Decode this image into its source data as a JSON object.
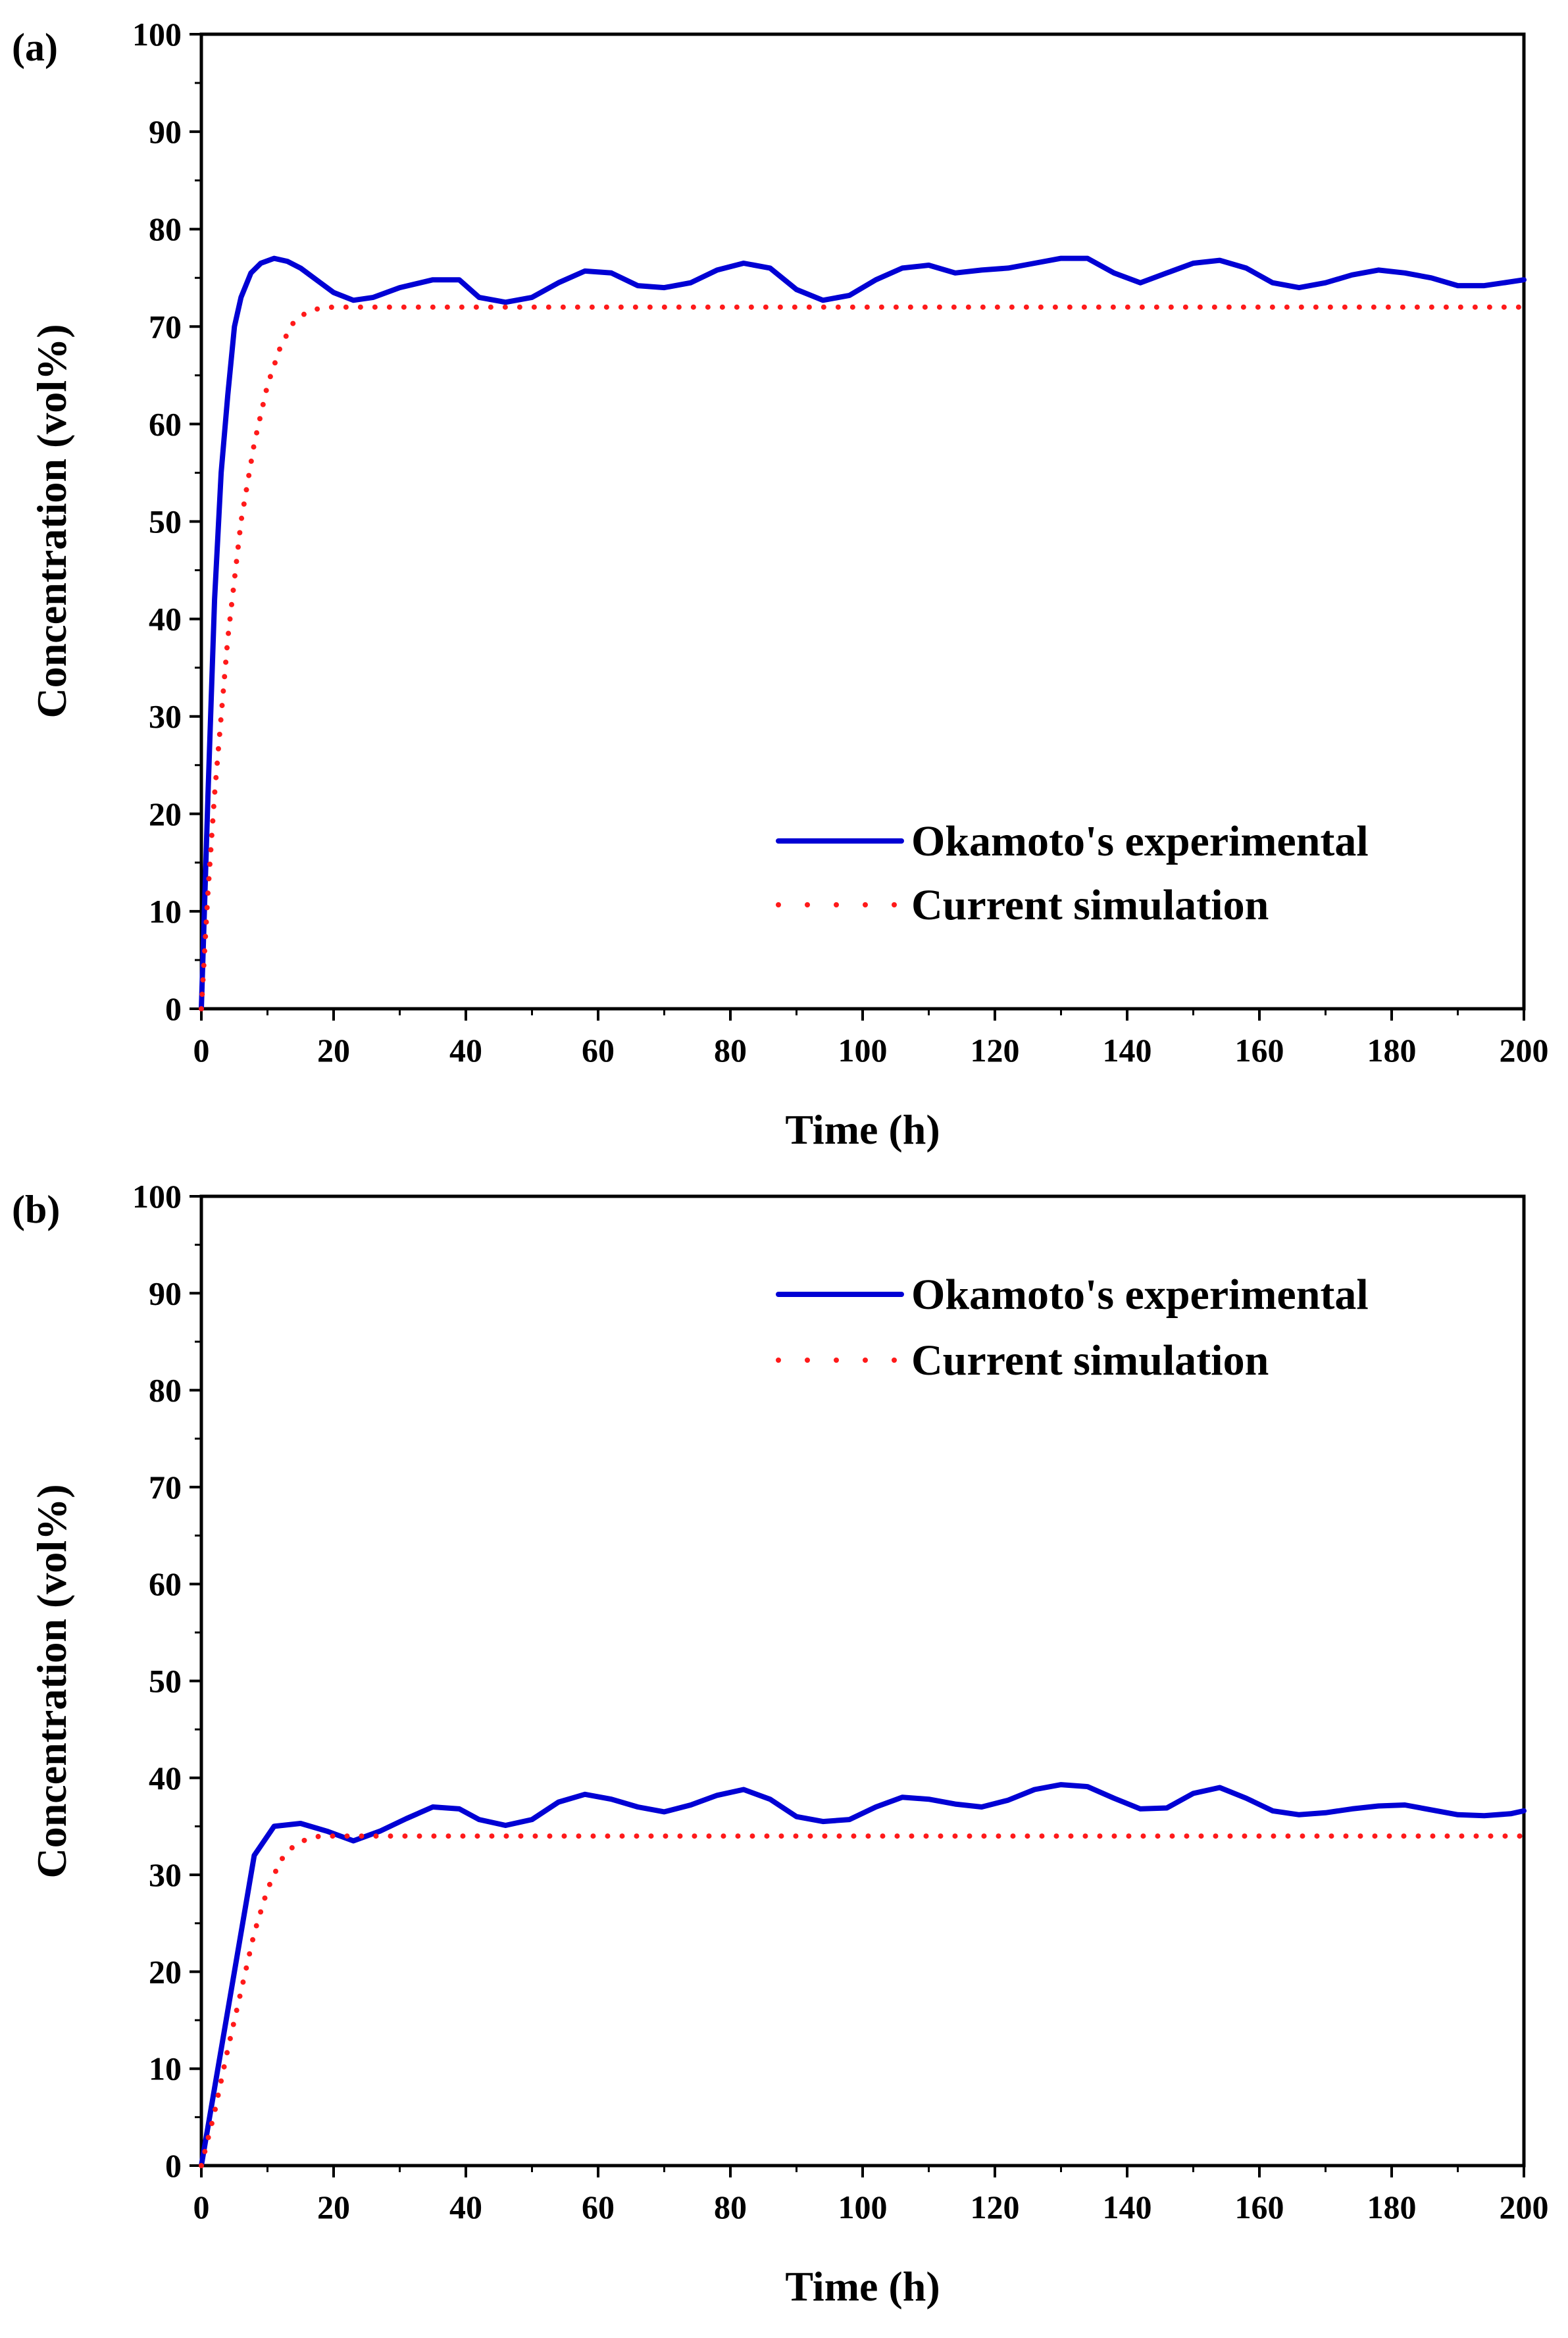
{
  "colors": {
    "experimental": "#0000d4",
    "simulation": "#ff1a1a",
    "axis": "#000000"
  },
  "chart_data": [
    {
      "type": "line",
      "panel_label": "(a)",
      "xlabel": "Time (h)",
      "ylabel": "Concentration (vol%)",
      "xlim": [
        0,
        200
      ],
      "ylim": [
        0,
        100
      ],
      "xticks": [
        0,
        20,
        40,
        60,
        80,
        100,
        120,
        140,
        160,
        180,
        200
      ],
      "yticks": [
        0,
        10,
        20,
        30,
        40,
        50,
        60,
        70,
        80,
        90,
        100
      ],
      "legend_position": "bottom-right",
      "series": [
        {
          "name": "Okamoto's experimental",
          "style": "solid",
          "x": [
            0,
            1,
            2,
            3,
            4,
            5,
            6,
            7.5,
            9,
            11,
            13,
            15,
            18,
            20,
            23,
            26,
            30,
            35,
            39,
            42,
            46,
            50,
            54,
            58,
            62,
            66,
            70,
            74,
            78,
            82,
            86,
            90,
            94,
            98,
            102,
            106,
            110,
            114,
            118,
            122,
            126,
            130,
            134,
            138,
            142,
            146,
            150,
            154,
            158,
            162,
            166,
            170,
            174,
            178,
            182,
            186,
            190,
            194,
            198,
            200
          ],
          "y": [
            0,
            22,
            42,
            55,
            63,
            70,
            73,
            75.5,
            76.5,
            77,
            76.7,
            76,
            74.5,
            73.5,
            72.7,
            73,
            74,
            74.8,
            74.8,
            73,
            72.5,
            73,
            74.5,
            75.7,
            75.5,
            74.2,
            74,
            74.5,
            75.8,
            76.5,
            76,
            73.8,
            72.7,
            73.2,
            74.8,
            76,
            76.3,
            75.5,
            75.8,
            76,
            76.5,
            77,
            77,
            75.5,
            74.5,
            75.5,
            76.5,
            76.8,
            76,
            74.5,
            74,
            74.5,
            75.3,
            75.8,
            75.5,
            75,
            74.2,
            74.2,
            74.6,
            74.8
          ]
        },
        {
          "name": "Current simulation",
          "style": "dotted",
          "x": [
            0,
            1,
            2,
            3,
            4,
            6,
            8,
            10,
            12,
            14,
            16,
            18,
            20,
            25,
            30,
            40,
            60,
            80,
            100,
            120,
            140,
            160,
            180,
            200
          ],
          "y": [
            0,
            12,
            22,
            30,
            38,
            50,
            58,
            64,
            68,
            70.5,
            71.5,
            71.9,
            72,
            72,
            72,
            72,
            72,
            72,
            72,
            72,
            72,
            72,
            72,
            72
          ]
        }
      ]
    },
    {
      "type": "line",
      "panel_label": "(b)",
      "xlabel": "Time (h)",
      "ylabel": "Concentration (vol%)",
      "xlim": [
        0,
        200
      ],
      "ylim": [
        0,
        100
      ],
      "xticks": [
        0,
        20,
        40,
        60,
        80,
        100,
        120,
        140,
        160,
        180,
        200
      ],
      "yticks": [
        0,
        10,
        20,
        30,
        40,
        50,
        60,
        70,
        80,
        90,
        100
      ],
      "legend_position": "top-right",
      "series": [
        {
          "name": "Okamoto's experimental",
          "style": "solid",
          "x": [
            0,
            4,
            8,
            11,
            15,
            19,
            23,
            27,
            31,
            35,
            39,
            42,
            46,
            50,
            54,
            58,
            62,
            66,
            70,
            74,
            78,
            82,
            86,
            90,
            94,
            98,
            102,
            106,
            110,
            114,
            118,
            122,
            126,
            130,
            134,
            138,
            142,
            146,
            150,
            154,
            158,
            162,
            166,
            170,
            174,
            178,
            182,
            186,
            190,
            194,
            198,
            200
          ],
          "y": [
            0,
            16,
            32,
            35,
            35.3,
            34.5,
            33.5,
            34.5,
            35.8,
            37,
            36.8,
            35.7,
            35.1,
            35.7,
            37.5,
            38.3,
            37.8,
            37,
            36.5,
            37.2,
            38.2,
            38.8,
            37.8,
            36,
            35.5,
            35.7,
            37,
            38,
            37.8,
            37.3,
            37,
            37.7,
            38.8,
            39.3,
            39.1,
            37.9,
            36.8,
            36.9,
            38.4,
            39,
            37.9,
            36.6,
            36.2,
            36.4,
            36.8,
            37.1,
            37.2,
            36.7,
            36.2,
            36.1,
            36.3,
            36.6
          ]
        },
        {
          "name": "Current simulation",
          "style": "dotted",
          "x": [
            0,
            2,
            4,
            6,
            8,
            10,
            12,
            14,
            16,
            18,
            20,
            25,
            40,
            60,
            80,
            100,
            120,
            140,
            160,
            180,
            200
          ],
          "y": [
            0,
            5.5,
            12,
            18,
            24,
            28.5,
            31.5,
            33,
            33.7,
            34,
            34,
            34,
            34,
            34,
            34,
            34,
            34,
            34,
            34,
            34,
            34
          ]
        }
      ]
    }
  ]
}
